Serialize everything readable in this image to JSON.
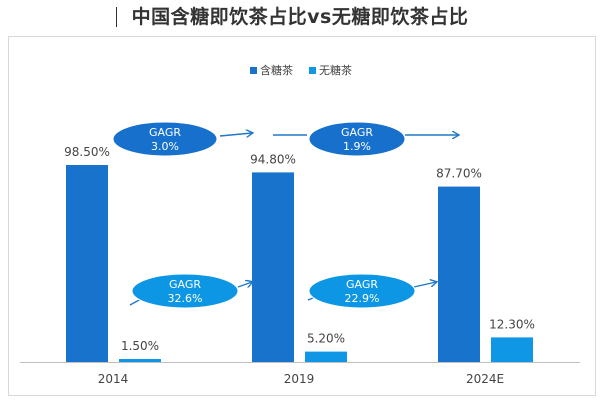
{
  "title": "中国含糖即饮茶占比vs无糖即饮茶占比",
  "chart_data": {
    "type": "bar",
    "categories": [
      "2014",
      "2019",
      "2024E"
    ],
    "series": [
      {
        "name": "含糖茶",
        "values": [
          98.5,
          94.8,
          87.7
        ],
        "labels": [
          "98.50%",
          "94.80%",
          "87.70%"
        ],
        "color": "#1873cd"
      },
      {
        "name": "无糖茶",
        "values": [
          1.5,
          5.2,
          12.3
        ],
        "labels": [
          "1.50%",
          "5.20%",
          "12.30%"
        ],
        "color": "#0f97e6"
      }
    ],
    "annotations": [
      {
        "series": "含糖茶",
        "from": "2014",
        "to": "2019",
        "title": "GAGR",
        "value": "3.0%"
      },
      {
        "series": "含糖茶",
        "from": "2019",
        "to": "2024E",
        "title": "GAGR",
        "value": "1.9%"
      },
      {
        "series": "无糖茶",
        "from": "2014",
        "to": "2019",
        "title": "GAGR",
        "value": "32.6%"
      },
      {
        "series": "无糖茶",
        "from": "2019",
        "to": "2024E",
        "title": "GAGR",
        "value": "22.9%"
      }
    ],
    "ylim": [
      0,
      100
    ],
    "grid": false,
    "legend": "top-center",
    "accent_colors": {
      "sugar_ellipse": "#1670cc",
      "nosugar_ellipse": "#0c96e4",
      "arrow": "#1f78c8"
    }
  }
}
